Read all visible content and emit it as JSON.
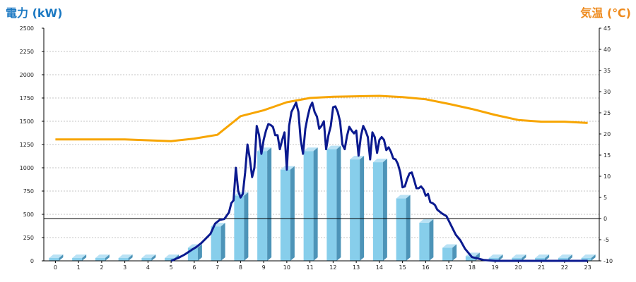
{
  "chart_data": {
    "type": "bar",
    "y_left_label": "電力 (kW)",
    "y_right_label": "気温 (℃)",
    "colors": {
      "bar": "#87ceeb",
      "bar_side": "#4d94b8",
      "bar_top": "#b9e2f5",
      "power_line": "#0b1a8f",
      "temperature_line": "#f7a500",
      "zero_line": "#000000"
    },
    "ylim_left": [
      0,
      2500
    ],
    "ylim_right": [
      -10,
      45
    ],
    "yticks_left": [
      "0",
      "250",
      "500",
      "750",
      "1000",
      "1250",
      "1500",
      "1750",
      "2000",
      "2250",
      "2500"
    ],
    "yticks_right": [
      "-10",
      "-5",
      "0",
      "5",
      "10",
      "15",
      "20",
      "25",
      "30",
      "35",
      "40",
      "45"
    ],
    "categories": [
      "0",
      "1",
      "2",
      "3",
      "4",
      "5",
      "6",
      "7",
      "8",
      "9",
      "10",
      "11",
      "12",
      "13",
      "14",
      "15",
      "16",
      "17",
      "18",
      "19",
      "20",
      "21",
      "22",
      "23"
    ],
    "bar_values": [
      30,
      30,
      30,
      30,
      30,
      30,
      140,
      370,
      700,
      1180,
      980,
      1180,
      1200,
      1090,
      1060,
      670,
      410,
      140,
      50,
      30,
      30,
      30,
      30,
      30
    ],
    "power_series": {
      "x": [
        5.0,
        5.3,
        5.6,
        5.9,
        6.1,
        6.3,
        6.5,
        6.7,
        6.9,
        7.1,
        7.3,
        7.5,
        7.6,
        7.7,
        7.8,
        7.9,
        8.0,
        8.1,
        8.2,
        8.3,
        8.4,
        8.5,
        8.6,
        8.7,
        8.8,
        8.9,
        9.0,
        9.1,
        9.2,
        9.3,
        9.4,
        9.5,
        9.6,
        9.7,
        9.8,
        9.9,
        10.0,
        10.1,
        10.2,
        10.3,
        10.4,
        10.5,
        10.6,
        10.7,
        10.8,
        10.9,
        11.0,
        11.1,
        11.2,
        11.3,
        11.4,
        11.5,
        11.6,
        11.7,
        11.8,
        11.9,
        12.0,
        12.1,
        12.2,
        12.3,
        12.4,
        12.5,
        12.6,
        12.7,
        12.8,
        12.9,
        13.0,
        13.1,
        13.2,
        13.3,
        13.4,
        13.5,
        13.6,
        13.7,
        13.8,
        13.9,
        14.0,
        14.1,
        14.2,
        14.3,
        14.4,
        14.5,
        14.6,
        14.7,
        14.8,
        14.9,
        15.0,
        15.1,
        15.2,
        15.3,
        15.4,
        15.5,
        15.6,
        15.7,
        15.8,
        15.9,
        16.0,
        16.1,
        16.2,
        16.3,
        16.4,
        16.5,
        16.7,
        16.9,
        17.1,
        17.3,
        17.5,
        17.7,
        18.0,
        18.5,
        19.0,
        20.0,
        21.0,
        22.0,
        23.0
      ],
      "values": [
        0,
        30,
        70,
        120,
        150,
        190,
        240,
        290,
        400,
        440,
        450,
        520,
        620,
        650,
        1000,
        750,
        680,
        720,
        950,
        1250,
        1100,
        900,
        1000,
        1450,
        1350,
        1150,
        1300,
        1400,
        1470,
        1460,
        1440,
        1350,
        1350,
        1200,
        1300,
        1380,
        980,
        1450,
        1600,
        1650,
        1700,
        1600,
        1300,
        1150,
        1420,
        1550,
        1650,
        1700,
        1600,
        1550,
        1420,
        1450,
        1500,
        1200,
        1350,
        1450,
        1650,
        1660,
        1600,
        1500,
        1250,
        1200,
        1340,
        1440,
        1400,
        1370,
        1400,
        1130,
        1340,
        1450,
        1400,
        1330,
        1090,
        1380,
        1330,
        1160,
        1300,
        1330,
        1300,
        1190,
        1220,
        1170,
        1100,
        1090,
        1040,
        950,
        790,
        800,
        880,
        940,
        950,
        870,
        780,
        780,
        800,
        770,
        700,
        720,
        630,
        620,
        600,
        550,
        510,
        480,
        380,
        280,
        220,
        130,
        40,
        10,
        0,
        0,
        0,
        0,
        0
      ]
    },
    "temperature_series": {
      "x": [
        0,
        1,
        2,
        3,
        4,
        5,
        6,
        7,
        8,
        9,
        10,
        11,
        12,
        13,
        14,
        15,
        16,
        17,
        18,
        19,
        20,
        21,
        22,
        23
      ],
      "values": [
        18.7,
        18.7,
        18.7,
        18.7,
        18.5,
        18.3,
        18.9,
        19.8,
        24.2,
        25.6,
        27.5,
        28.5,
        28.8,
        28.9,
        29.0,
        28.7,
        28.2,
        27.1,
        25.9,
        24.5,
        23.3,
        22.9,
        22.9,
        22.6
      ]
    }
  }
}
